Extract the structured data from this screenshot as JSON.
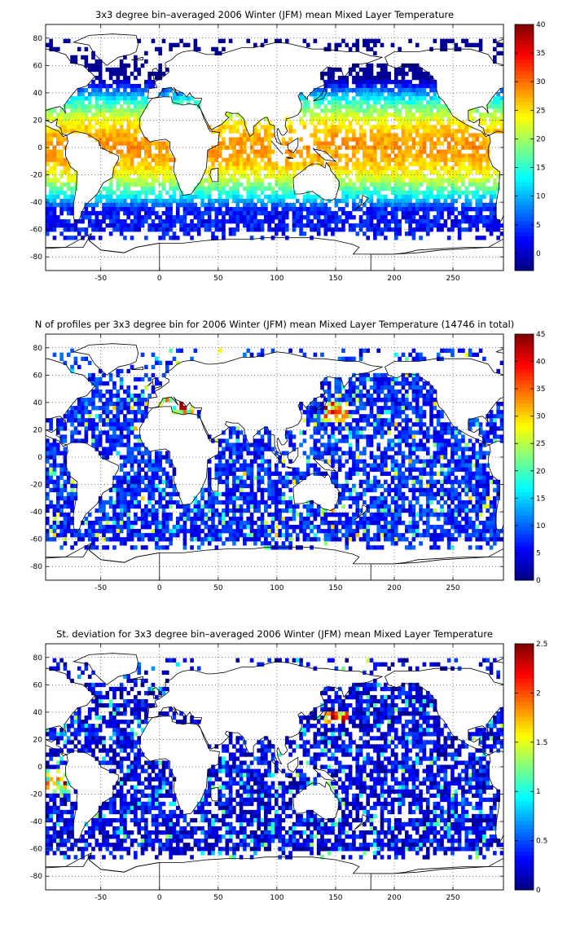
{
  "chart_data": [
    {
      "type": "heatmap",
      "title": "3x3 degree bin–averaged 2006 Winter (JFM) mean Mixed Layer Temperature",
      "x_ticks": [
        "-50",
        "0",
        "50",
        "100",
        "150",
        "200",
        "250"
      ],
      "y_ticks": [
        "80",
        "60",
        "40",
        "20",
        "0",
        "-20",
        "-40",
        "-60",
        "-80"
      ],
      "xlim": [
        -97,
        293
      ],
      "ylim": [
        -90,
        90
      ],
      "grid": "dotted",
      "colorbar": {
        "range": [
          -3,
          40
        ],
        "ticks": [
          "0",
          "5",
          "10",
          "15",
          "20",
          "25",
          "30",
          "35",
          "40"
        ]
      },
      "field": "temperature"
    },
    {
      "type": "heatmap",
      "title": "N of profiles per 3x3 degree bin for 2006 Winter (JFM) mean Mixed Layer Temperature  (14746 in total)",
      "x_ticks": [
        "-50",
        "0",
        "50",
        "100",
        "150",
        "200",
        "250"
      ],
      "y_ticks": [
        "80",
        "60",
        "40",
        "20",
        "0",
        "-20",
        "-40",
        "-60",
        "-80"
      ],
      "xlim": [
        -97,
        293
      ],
      "ylim": [
        -90,
        90
      ],
      "grid": "dotted",
      "colorbar": {
        "range": [
          0,
          45
        ],
        "ticks": [
          "0",
          "5",
          "10",
          "15",
          "20",
          "25",
          "30",
          "35",
          "40",
          "45"
        ]
      },
      "field": "count"
    },
    {
      "type": "heatmap",
      "title": "St. deviation for 3x3 degree bin–averaged 2006 Winter (JFM) mean Mixed Layer Temperature",
      "x_ticks": [
        "-50",
        "0",
        "50",
        "100",
        "150",
        "200",
        "250"
      ],
      "y_ticks": [
        "80",
        "60",
        "40",
        "20",
        "0",
        "-20",
        "-40",
        "-60",
        "-80"
      ],
      "xlim": [
        -97,
        293
      ],
      "ylim": [
        -90,
        90
      ],
      "grid": "dotted",
      "colorbar": {
        "range": [
          0,
          2.5
        ],
        "ticks": [
          "0",
          "0.5",
          "1",
          "1.5",
          "2",
          "2.5"
        ]
      },
      "field": "std"
    }
  ],
  "colormap": "jet"
}
